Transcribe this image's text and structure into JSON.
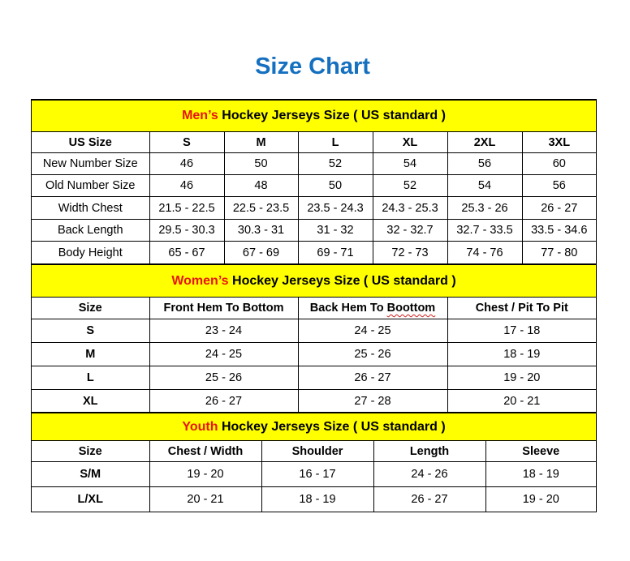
{
  "title": "Size Chart",
  "colors": {
    "title": "#1570c0",
    "banner_bg": "#ffff00",
    "highlight": "#e8140f"
  },
  "mens": {
    "banner_highlight": "Men’s",
    "banner_rest": " Hockey Jerseys Size ( US standard )",
    "headers": [
      "US Size",
      "S",
      "M",
      "L",
      "XL",
      "2XL",
      "3XL"
    ],
    "rows": [
      [
        "New Number Size",
        "46",
        "50",
        "52",
        "54",
        "56",
        "60"
      ],
      [
        "Old Number Size",
        "46",
        "48",
        "50",
        "52",
        "54",
        "56"
      ],
      [
        "Width Chest",
        "21.5 - 22.5",
        "22.5 - 23.5",
        "23.5 - 24.3",
        "24.3 - 25.3",
        "25.3 - 26",
        "26 - 27"
      ],
      [
        "Back Length",
        "29.5 - 30.3",
        "30.3 - 31",
        "31 - 32",
        "32 - 32.7",
        "32.7 - 33.5",
        "33.5 - 34.6"
      ],
      [
        "Body Height",
        "65 - 67",
        "67 - 69",
        "69 - 71",
        "72 - 73",
        "74 - 76",
        "77 - 80"
      ]
    ]
  },
  "womens": {
    "banner_highlight": "Women’s",
    "banner_rest": " Hockey Jerseys Size ( US standard )",
    "headers": [
      "Size",
      "Front Hem To Bottom",
      "Back Hem To Boottom",
      "Chest / Pit To Pit"
    ],
    "rows": [
      [
        "S",
        "23 - 24",
        "24 - 25",
        "17 - 18"
      ],
      [
        "M",
        "24 - 25",
        "25 - 26",
        "18 - 19"
      ],
      [
        "L",
        "25 - 26",
        "26 - 27",
        "19 - 20"
      ],
      [
        "XL",
        "26 - 27",
        "27 - 28",
        "20 - 21"
      ]
    ]
  },
  "youth": {
    "banner_highlight": "Youth",
    "banner_rest": " Hockey Jerseys Size ( US standard )",
    "headers": [
      "Size",
      "Chest / Width",
      "Shoulder",
      "Length",
      "Sleeve"
    ],
    "rows": [
      [
        "S/M",
        "19 - 20",
        "16 - 17",
        "24 - 26",
        "18 - 19"
      ],
      [
        "L/XL",
        "20 - 21",
        "18 - 19",
        "26 - 27",
        "19 - 20"
      ]
    ]
  }
}
